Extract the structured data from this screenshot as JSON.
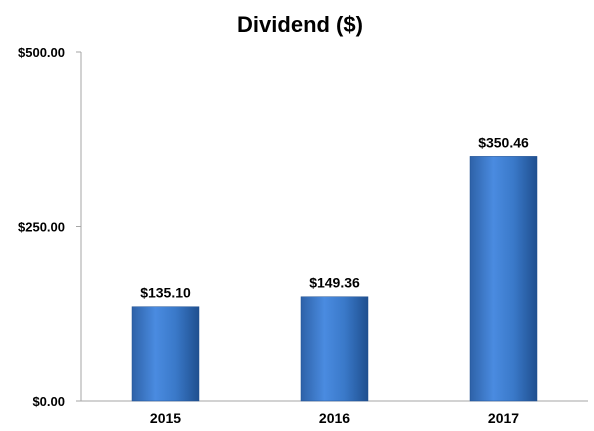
{
  "chart_data": {
    "type": "bar",
    "title": "Dividend ($)",
    "xlabel": "",
    "ylabel": "",
    "categories": [
      "2015",
      "2016",
      "2017"
    ],
    "values": [
      135.1,
      149.36,
      350.46
    ],
    "data_labels": [
      "$135.10",
      "$149.36",
      "$350.46"
    ],
    "y_ticks": [
      0,
      250,
      500
    ],
    "y_tick_labels": [
      "$0.00",
      "$250.00",
      "$500.00"
    ],
    "ylim": [
      0,
      500
    ],
    "grid": false,
    "legend": "none",
    "bar_color": "#3a79c9"
  }
}
